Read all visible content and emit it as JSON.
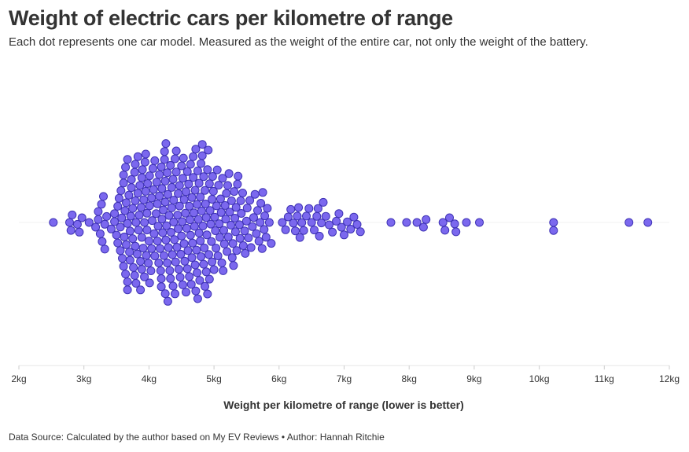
{
  "title": "Weight of electric cars per kilometre of range",
  "subtitle": "Each dot represents one car model. Measured as the weight of the entire car, not only the weight of the battery.",
  "footer": "Data Source: Calculated by the author based on My EV Reviews • Author: Hannah Ritchie",
  "colors": {
    "dot_fill": "#7b68ee",
    "dot_stroke": "#3f33b5",
    "axis": "#e6e6e6",
    "text": "#333333"
  },
  "chart_data": {
    "type": "scatter",
    "subtype": "beeswarm",
    "title": "Weight of electric cars per kilometre of range",
    "xlabel": "Weight per kilometre of range (lower is better)",
    "ylabel": "",
    "xlim": [
      2,
      12
    ],
    "x_ticks": [
      2,
      3,
      4,
      5,
      6,
      7,
      8,
      9,
      10,
      11,
      12
    ],
    "x_tick_labels": [
      "2kg",
      "3kg",
      "4kg",
      "5kg",
      "6kg",
      "7kg",
      "8kg",
      "9kg",
      "10kg",
      "11kg",
      "12kg"
    ],
    "grid": false,
    "legend": "none",
    "values": [
      2.53,
      2.78,
      2.8,
      2.82,
      2.9,
      2.93,
      2.97,
      3.08,
      3.18,
      3.22,
      3.22,
      3.25,
      3.27,
      3.28,
      3.3,
      3.32,
      3.32,
      3.35,
      3.42,
      3.47,
      3.47,
      3.5,
      3.52,
      3.52,
      3.54,
      3.56,
      3.56,
      3.57,
      3.58,
      3.59,
      3.61,
      3.61,
      3.61,
      3.62,
      3.63,
      3.64,
      3.64,
      3.65,
      3.65,
      3.67,
      3.67,
      3.67,
      3.67,
      3.69,
      3.7,
      3.71,
      3.71,
      3.72,
      3.73,
      3.73,
      3.75,
      3.75,
      3.76,
      3.78,
      3.78,
      3.79,
      3.79,
      3.79,
      3.8,
      3.8,
      3.82,
      3.83,
      3.83,
      3.84,
      3.85,
      3.86,
      3.87,
      3.87,
      3.88,
      3.89,
      3.89,
      3.89,
      3.9,
      3.91,
      3.92,
      3.93,
      3.93,
      3.94,
      3.95,
      3.95,
      3.96,
      3.97,
      3.97,
      3.98,
      3.99,
      4.0,
      4.01,
      4.01,
      4.01,
      4.03,
      4.04,
      4.04,
      4.05,
      4.06,
      4.07,
      4.08,
      4.09,
      4.09,
      4.11,
      4.12,
      4.13,
      4.13,
      4.14,
      4.15,
      4.16,
      4.16,
      4.17,
      4.18,
      4.19,
      4.19,
      4.19,
      4.2,
      4.2,
      4.21,
      4.22,
      4.23,
      4.24,
      4.24,
      4.25,
      4.25,
      4.25,
      4.26,
      4.26,
      4.27,
      4.28,
      4.28,
      4.29,
      4.29,
      4.3,
      4.31,
      4.32,
      4.33,
      4.33,
      4.34,
      4.35,
      4.35,
      4.36,
      4.37,
      4.37,
      4.38,
      4.38,
      4.39,
      4.4,
      4.4,
      4.41,
      4.42,
      4.42,
      4.43,
      4.44,
      4.45,
      4.45,
      4.46,
      4.47,
      4.47,
      4.48,
      4.49,
      4.5,
      4.5,
      4.51,
      4.52,
      4.52,
      4.53,
      4.54,
      4.54,
      4.55,
      4.56,
      4.57,
      4.57,
      4.58,
      4.59,
      4.59,
      4.6,
      4.61,
      4.62,
      4.62,
      4.63,
      4.64,
      4.64,
      4.65,
      4.66,
      4.66,
      4.67,
      4.68,
      4.68,
      4.69,
      4.7,
      4.71,
      4.71,
      4.72,
      4.72,
      4.73,
      4.74,
      4.74,
      4.75,
      4.75,
      4.76,
      4.77,
      4.77,
      4.78,
      4.79,
      4.79,
      4.8,
      4.8,
      4.81,
      4.82,
      4.82,
      4.83,
      4.84,
      4.84,
      4.85,
      4.86,
      4.86,
      4.87,
      4.88,
      4.88,
      4.89,
      4.9,
      4.9,
      4.91,
      4.92,
      4.93,
      4.93,
      4.94,
      4.95,
      4.96,
      4.97,
      4.97,
      4.98,
      4.99,
      5.0,
      5.01,
      5.02,
      5.03,
      5.04,
      5.05,
      5.06,
      5.07,
      5.08,
      5.09,
      5.1,
      5.11,
      5.12,
      5.13,
      5.14,
      5.15,
      5.16,
      5.17,
      5.18,
      5.19,
      5.2,
      5.21,
      5.22,
      5.23,
      5.24,
      5.26,
      5.27,
      5.28,
      5.29,
      5.3,
      5.31,
      5.32,
      5.33,
      5.34,
      5.35,
      5.36,
      5.37,
      5.39,
      5.4,
      5.41,
      5.42,
      5.44,
      5.45,
      5.47,
      5.48,
      5.5,
      5.51,
      5.53,
      5.55,
      5.57,
      5.59,
      5.61,
      5.63,
      5.65,
      5.67,
      5.69,
      5.71,
      5.72,
      5.74,
      5.75,
      5.77,
      5.78,
      5.8,
      5.82,
      5.85,
      5.88,
      6.05,
      6.1,
      6.14,
      6.18,
      6.22,
      6.25,
      6.28,
      6.3,
      6.32,
      6.35,
      6.38,
      6.42,
      6.46,
      6.5,
      6.54,
      6.58,
      6.6,
      6.62,
      6.65,
      6.68,
      6.72,
      6.77,
      6.82,
      6.88,
      6.92,
      6.96,
      7.0,
      7.05,
      7.1,
      7.15,
      7.2,
      7.25,
      7.72,
      7.96,
      8.12,
      8.22,
      8.26,
      8.52,
      8.55,
      8.62,
      8.7,
      8.72,
      8.88,
      9.08,
      10.22,
      10.22,
      11.38,
      11.67
    ]
  }
}
